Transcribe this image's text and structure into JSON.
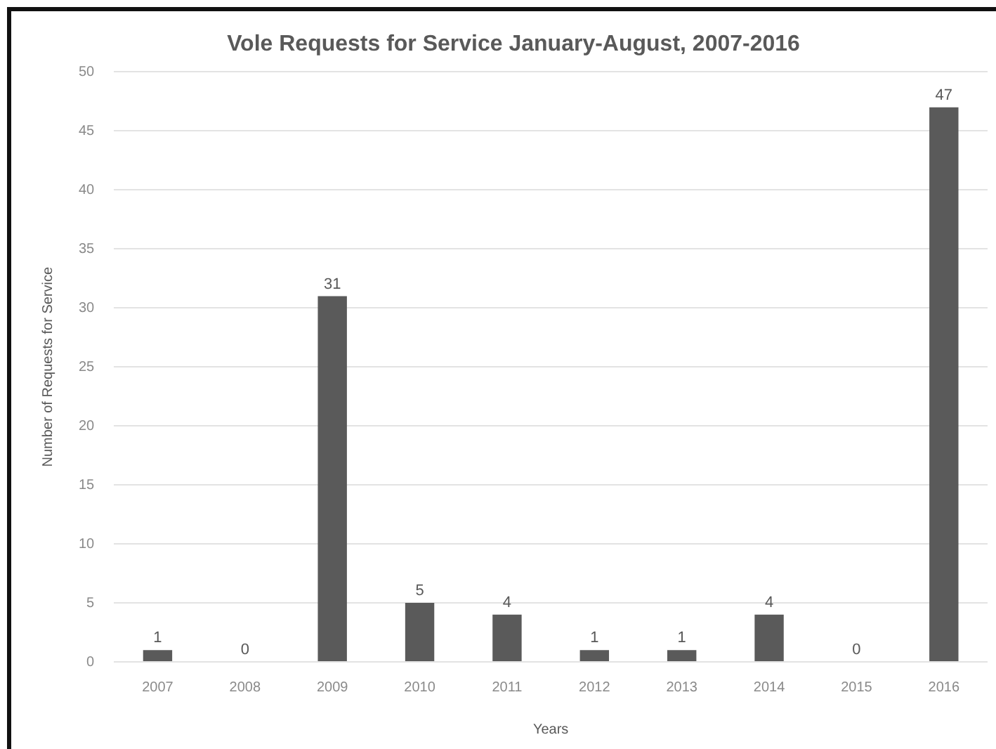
{
  "chart_data": {
    "type": "bar",
    "title": "Vole Requests for Service January-August, 2007-2016",
    "xlabel": "Years",
    "ylabel": "Number of Requests for Service",
    "categories": [
      "2007",
      "2008",
      "2009",
      "2010",
      "2011",
      "2012",
      "2013",
      "2014",
      "2015",
      "2016"
    ],
    "values": [
      1,
      0,
      31,
      5,
      4,
      1,
      1,
      4,
      0,
      47
    ],
    "color": "#5a5a5a",
    "ylim": [
      0,
      50
    ],
    "yticks": [
      0,
      5,
      10,
      15,
      20,
      25,
      30,
      35,
      40,
      45,
      50
    ],
    "grid": "y",
    "data_labels": true,
    "legend": false
  }
}
